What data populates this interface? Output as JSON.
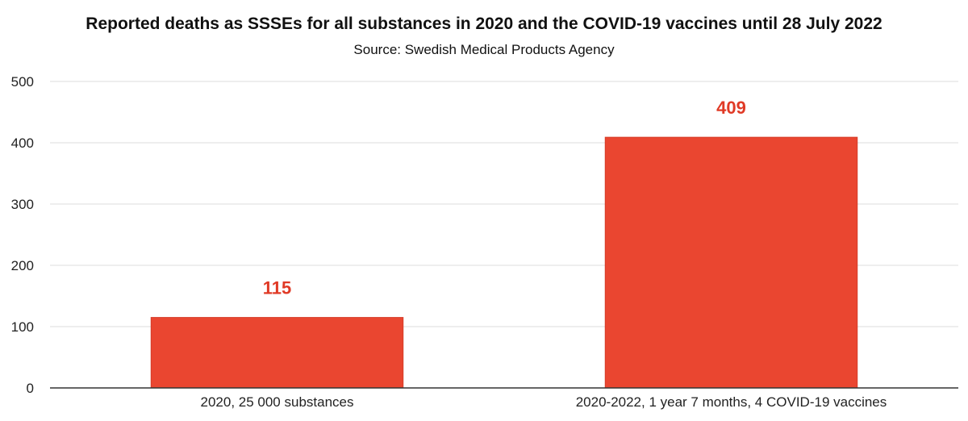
{
  "chart_data": {
    "type": "bar",
    "title": "Reported deaths as SSSEs for all substances in 2020 and the COVID-19 vaccines until 28 July 2022",
    "subtitle": "Source: Swedish Medical Products Agency",
    "categories": [
      "2020, 25 000 substances",
      "2020-2022, 1 year 7 months, 4 COVID-19 vaccines"
    ],
    "values": [
      115,
      409
    ],
    "data_labels": [
      "115",
      "409"
    ],
    "ylim": [
      0,
      500
    ],
    "yticks": [
      0,
      100,
      200,
      300,
      400,
      500
    ],
    "xlabel": "",
    "ylabel": "",
    "grid": true,
    "legend": "none",
    "colors": {
      "bar": "#ea4630",
      "bar_stroke": "#d63c28",
      "value_label": "#e03a26",
      "grid": "#dcdcdc",
      "axis": "#333333"
    }
  }
}
